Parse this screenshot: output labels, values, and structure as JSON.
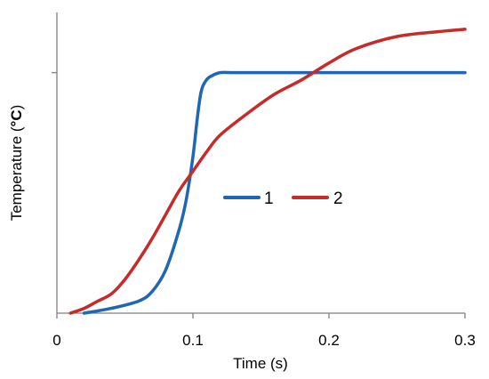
{
  "chart_data": {
    "type": "line",
    "xlabel": "Time (s)",
    "ylabel": "Temperature (",
    "ylabel_unit": "°C",
    "ylabel_close": ")",
    "xlim": [
      0,
      0.3
    ],
    "ylim": [
      0,
      1.25
    ],
    "x_ticks": [
      0,
      0.1,
      0.2,
      0.3
    ],
    "x_tick_labels": [
      "0",
      "0.1",
      "0.2",
      "0.3"
    ],
    "y_ticks": [
      1.0
    ],
    "y_tick_labels": [
      ""
    ],
    "grid": false,
    "legend_position": "center",
    "series": [
      {
        "name": "1",
        "color": "#1f66b3",
        "x": [
          0.02,
          0.04,
          0.06,
          0.07,
          0.08,
          0.09,
          0.095,
          0.1,
          0.103,
          0.106,
          0.11,
          0.115,
          0.12,
          0.13,
          0.15,
          0.2,
          0.25,
          0.3
        ],
        "y": [
          0.0,
          0.02,
          0.05,
          0.09,
          0.18,
          0.35,
          0.47,
          0.65,
          0.8,
          0.92,
          0.97,
          0.99,
          1.0,
          1.0,
          1.0,
          1.0,
          1.0,
          1.0
        ]
      },
      {
        "name": "2",
        "color": "#c42b2b",
        "x": [
          0.01,
          0.02,
          0.03,
          0.04,
          0.05,
          0.06,
          0.07,
          0.08,
          0.09,
          0.1,
          0.11,
          0.12,
          0.14,
          0.16,
          0.18,
          0.2,
          0.22,
          0.25,
          0.28,
          0.3
        ],
        "y": [
          0.0,
          0.02,
          0.05,
          0.08,
          0.14,
          0.22,
          0.31,
          0.41,
          0.51,
          0.59,
          0.67,
          0.74,
          0.83,
          0.91,
          0.97,
          1.04,
          1.1,
          1.15,
          1.17,
          1.18
        ]
      }
    ]
  }
}
